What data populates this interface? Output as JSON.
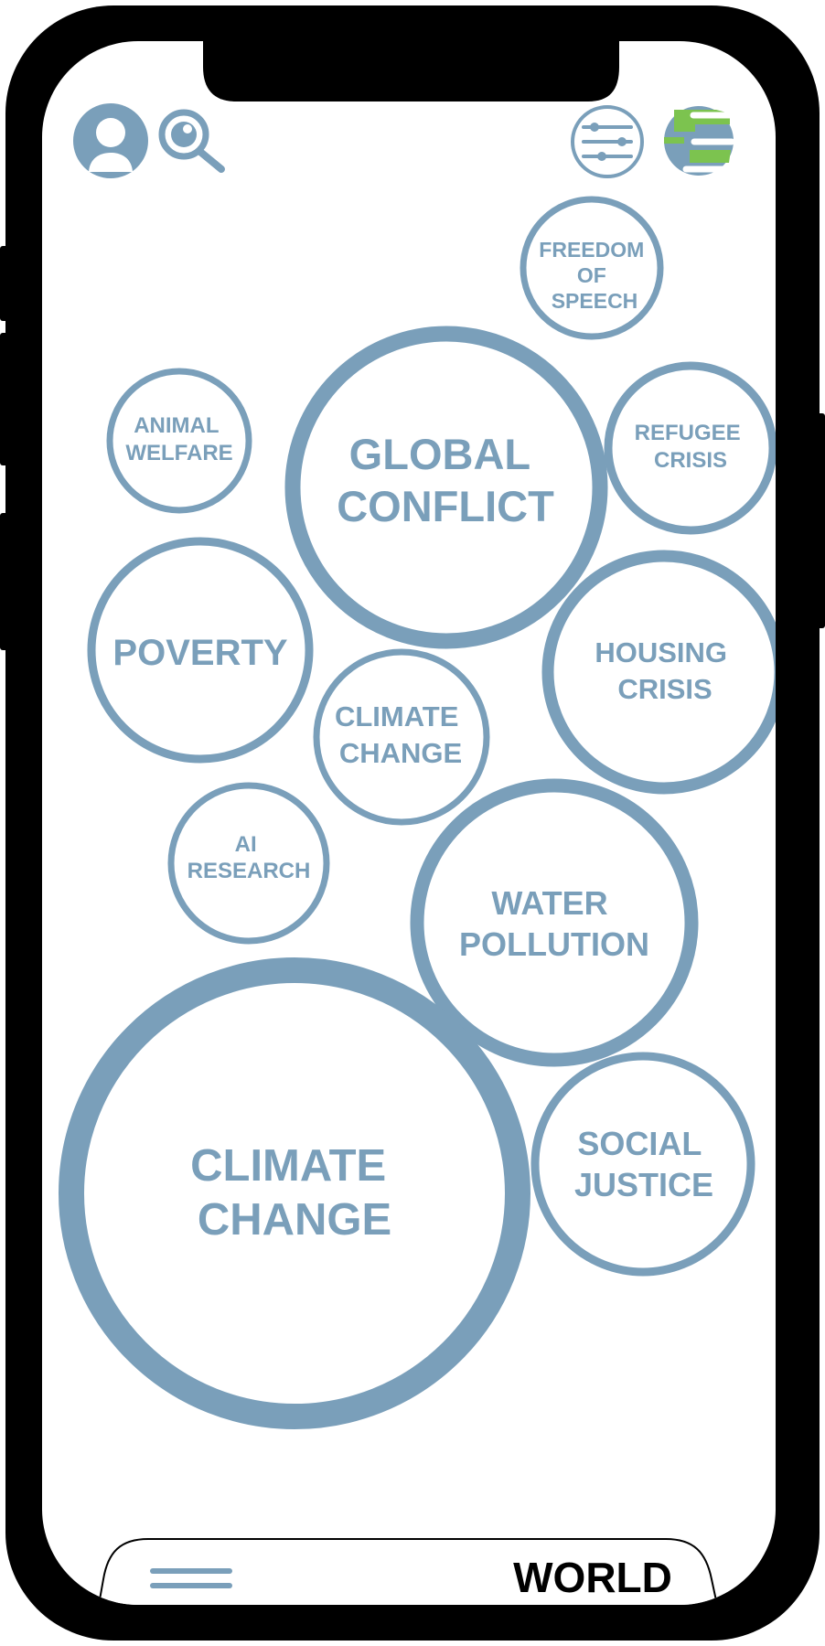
{
  "theme": {
    "accent": "#7a9fba",
    "frame": "#000000",
    "screen": "#ffffff",
    "globe_green": "#7cc34f"
  },
  "header": {
    "icons": [
      {
        "name": "profile-icon"
      },
      {
        "name": "search-icon"
      },
      {
        "name": "filter-icon"
      },
      {
        "name": "globe-icon"
      }
    ]
  },
  "topics": [
    {
      "lines": [
        "FREEDOM",
        "OF",
        "SPEECH"
      ]
    },
    {
      "lines": [
        "GLOBAL",
        "CONFLICT"
      ]
    },
    {
      "lines": [
        "ANIMAL",
        "WELFARE"
      ]
    },
    {
      "lines": [
        "REFUGEE",
        "CRISIS"
      ]
    },
    {
      "lines": [
        "POVERTY"
      ]
    },
    {
      "lines": [
        "CLIMATE",
        "CHANGE"
      ]
    },
    {
      "lines": [
        "HOUSING",
        "CRISIS"
      ]
    },
    {
      "lines": [
        "AI",
        "RESEARCH"
      ]
    },
    {
      "lines": [
        "WATER",
        "POLLUTION"
      ]
    },
    {
      "lines": [
        "CLIMATE",
        "CHANGE"
      ]
    },
    {
      "lines": [
        "SOCIAL",
        "JUSTICE"
      ]
    }
  ],
  "bottom_bar": {
    "label": "WORLD"
  }
}
